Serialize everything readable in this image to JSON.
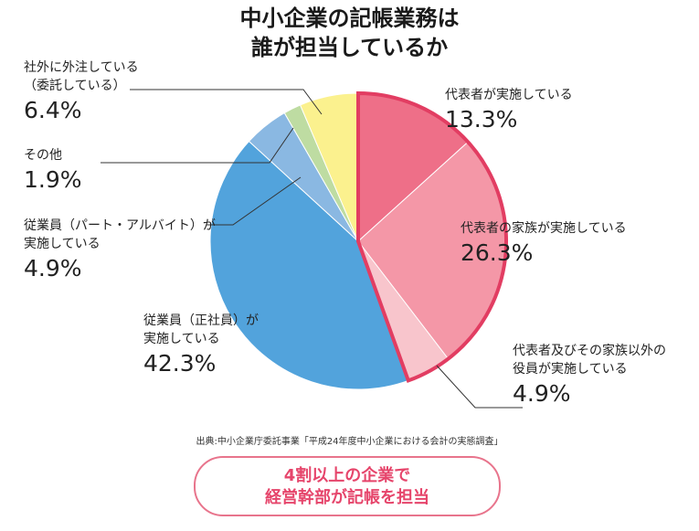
{
  "title_lines": [
    "中小企業の記帳業務は",
    "誰が担当しているか"
  ],
  "chart_data": {
    "type": "pie",
    "title": "中小企業の記帳業務は誰が担当しているか",
    "unit": "%",
    "slices": [
      {
        "label": "代表者が実施している",
        "value": 13.3,
        "display": "13.3%",
        "color": "#ee6f88",
        "highlight": true
      },
      {
        "label": "代表者の家族が実施している",
        "value": 26.3,
        "display": "26.3%",
        "color": "#f497a7",
        "highlight": true
      },
      {
        "label": "代表者及びその家族以外の役員が実施している",
        "value": 4.9,
        "display": "4.9%",
        "color": "#f8c5cc",
        "highlight": true
      },
      {
        "label": "従業員（正社員）が実施している",
        "value": 42.3,
        "display": "42.3%",
        "color": "#52a3dc",
        "highlight": false
      },
      {
        "label": "従業員（パート・アルバイト）が実施している",
        "value": 4.9,
        "display": "4.9%",
        "color": "#8ab8e2",
        "highlight": false
      },
      {
        "label": "その他",
        "value": 1.9,
        "display": "1.9%",
        "color": "#bedca2",
        "highlight": false
      },
      {
        "label": "社外に外注している（委託している）",
        "value": 6.4,
        "display": "6.4%",
        "color": "#fbf18e",
        "highlight": false
      }
    ],
    "highlight_border_color": "#e23d62"
  },
  "labels": {
    "daihyousha": {
      "lines": [
        "代表者が実施している"
      ],
      "value": "13.3%"
    },
    "kazoku": {
      "lines": [
        "代表者の家族が実施している"
      ],
      "value": "26.3%"
    },
    "yakuin": {
      "lines": [
        "代表者及びその家族以外の",
        "役員が実施している"
      ],
      "value": "4.9%"
    },
    "seishain": {
      "lines": [
        "従業員（正社員）が",
        "実施している"
      ],
      "value": "42.3%"
    },
    "part": {
      "lines": [
        "従業員（パート・アルバイト）が",
        "実施している"
      ],
      "value": "4.9%"
    },
    "sonota": {
      "lines": [
        "その他"
      ],
      "value": "1.9%"
    },
    "gaichu": {
      "lines": [
        "社外に外注している",
        "（委託している）"
      ],
      "value": "6.4%"
    }
  },
  "source": "出典:中小企業庁委託事業「平成24年度中小企業における会計の実態調査」",
  "callout_lines": [
    "4割以上の企業で",
    "経営幹部が記帳を担当"
  ]
}
